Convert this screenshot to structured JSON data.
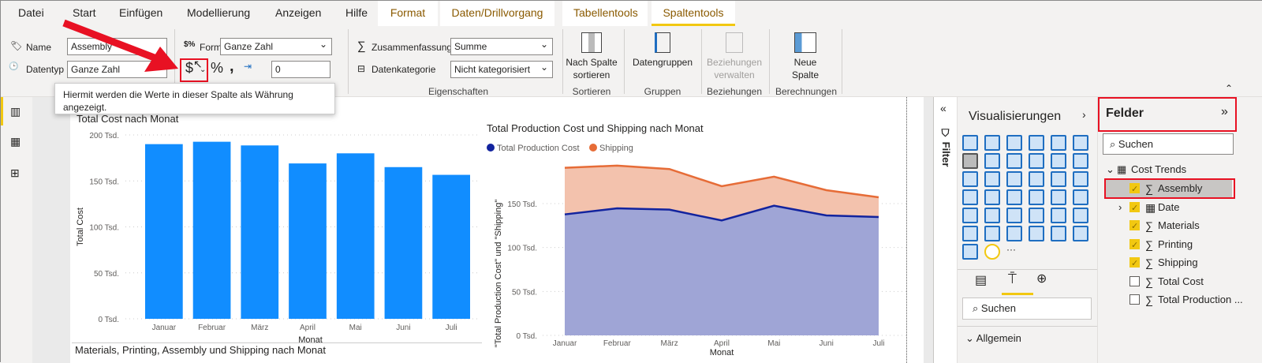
{
  "tabs": [
    "Datei",
    "Start",
    "Einfügen",
    "Modellierung",
    "Anzeigen",
    "Hilfe",
    "Format",
    "Daten/Drillvorgang",
    "Tabellentools",
    "Spaltentools"
  ],
  "ribbon": {
    "name_label": "Name",
    "name_value": "Assembly",
    "datatype_label": "Datentyp",
    "datatype_value": "Ganze Zahl",
    "format_label": "Format",
    "format_value": "Ganze Zahl",
    "currency_symbol": "$",
    "percent_symbol": "%",
    "comma_symbol": ",",
    "decimals_value": "0",
    "summary_label": "Zusammenfassung",
    "summary_value": "Summe",
    "category_label": "Datenkategorie",
    "category_value": "Nicht kategorisiert",
    "group_properties": "Eigenschaften",
    "sort_label": "Nach Spalte sortieren",
    "group_sort": "Sortieren",
    "datagroups_label": "Datengruppen",
    "group_groups": "Gruppen",
    "relations_label": "Beziehungen verwalten",
    "group_relations": "Beziehungen",
    "newcol_label": "Neue Spalte",
    "group_calc": "Berechnungen"
  },
  "tooltip": "Hiermit werden die Werte in dieser Spalte als Währung angezeigt.",
  "bottom_visual_title": "Materials, Printing, Assembly und Shipping nach Monat",
  "filter_label": "Filter",
  "viz": {
    "title": "Visualisierungen",
    "search_placeholder": "Suchen",
    "section": "Allgemein"
  },
  "fields": {
    "title": "Felder",
    "search_placeholder": "Suchen",
    "table": "Cost Trends",
    "items": [
      {
        "name": "Assembly",
        "checked": true,
        "selected": true
      },
      {
        "name": "Date",
        "checked": true
      },
      {
        "name": "Materials",
        "checked": true
      },
      {
        "name": "Printing",
        "checked": true
      },
      {
        "name": "Shipping",
        "checked": true
      },
      {
        "name": "Total Cost",
        "checked": false
      },
      {
        "name": "Total Production ...",
        "checked": false
      }
    ]
  },
  "chart_data": [
    {
      "type": "bar",
      "title": "Total Cost nach Monat",
      "xlabel": "Monat",
      "ylabel": "Total Cost",
      "categories": [
        "Januar",
        "Februar",
        "März",
        "April",
        "Mai",
        "Juni",
        "Juli"
      ],
      "values": [
        190000,
        192600,
        188600,
        169000,
        180000,
        165000,
        156600
      ],
      "ylim": [
        0,
        200000
      ],
      "yticks": [
        "0 Tsd.",
        "50 Tsd.",
        "100 Tsd.",
        "150 Tsd.",
        "200 Tsd."
      ],
      "grid": true,
      "color": "#118dff"
    },
    {
      "type": "area",
      "stacked": true,
      "title": "Total Production Cost und Shipping nach Monat",
      "xlabel": "Monat",
      "ylabel": "\"Total Production Cost\" und \"Shipping\"",
      "categories": [
        "Januar",
        "Februar",
        "März",
        "April",
        "Mai",
        "Juni",
        "Juli"
      ],
      "series": [
        {
          "name": "Total Production Cost",
          "values": [
            137700,
            144600,
            143100,
            130800,
            147600,
            136500,
            134700
          ],
          "color": "#12239e"
        },
        {
          "name": "Shipping",
          "values": [
            53100,
            48600,
            46200,
            39000,
            33000,
            28800,
            22500
          ],
          "color": "#e66c37"
        }
      ],
      "ylim": [
        0,
        200000
      ],
      "yticks": [
        "0 Tsd.",
        "50 Tsd.",
        "100 Tsd.",
        "150 Tsd."
      ],
      "grid": true,
      "legend": "top-left"
    }
  ]
}
